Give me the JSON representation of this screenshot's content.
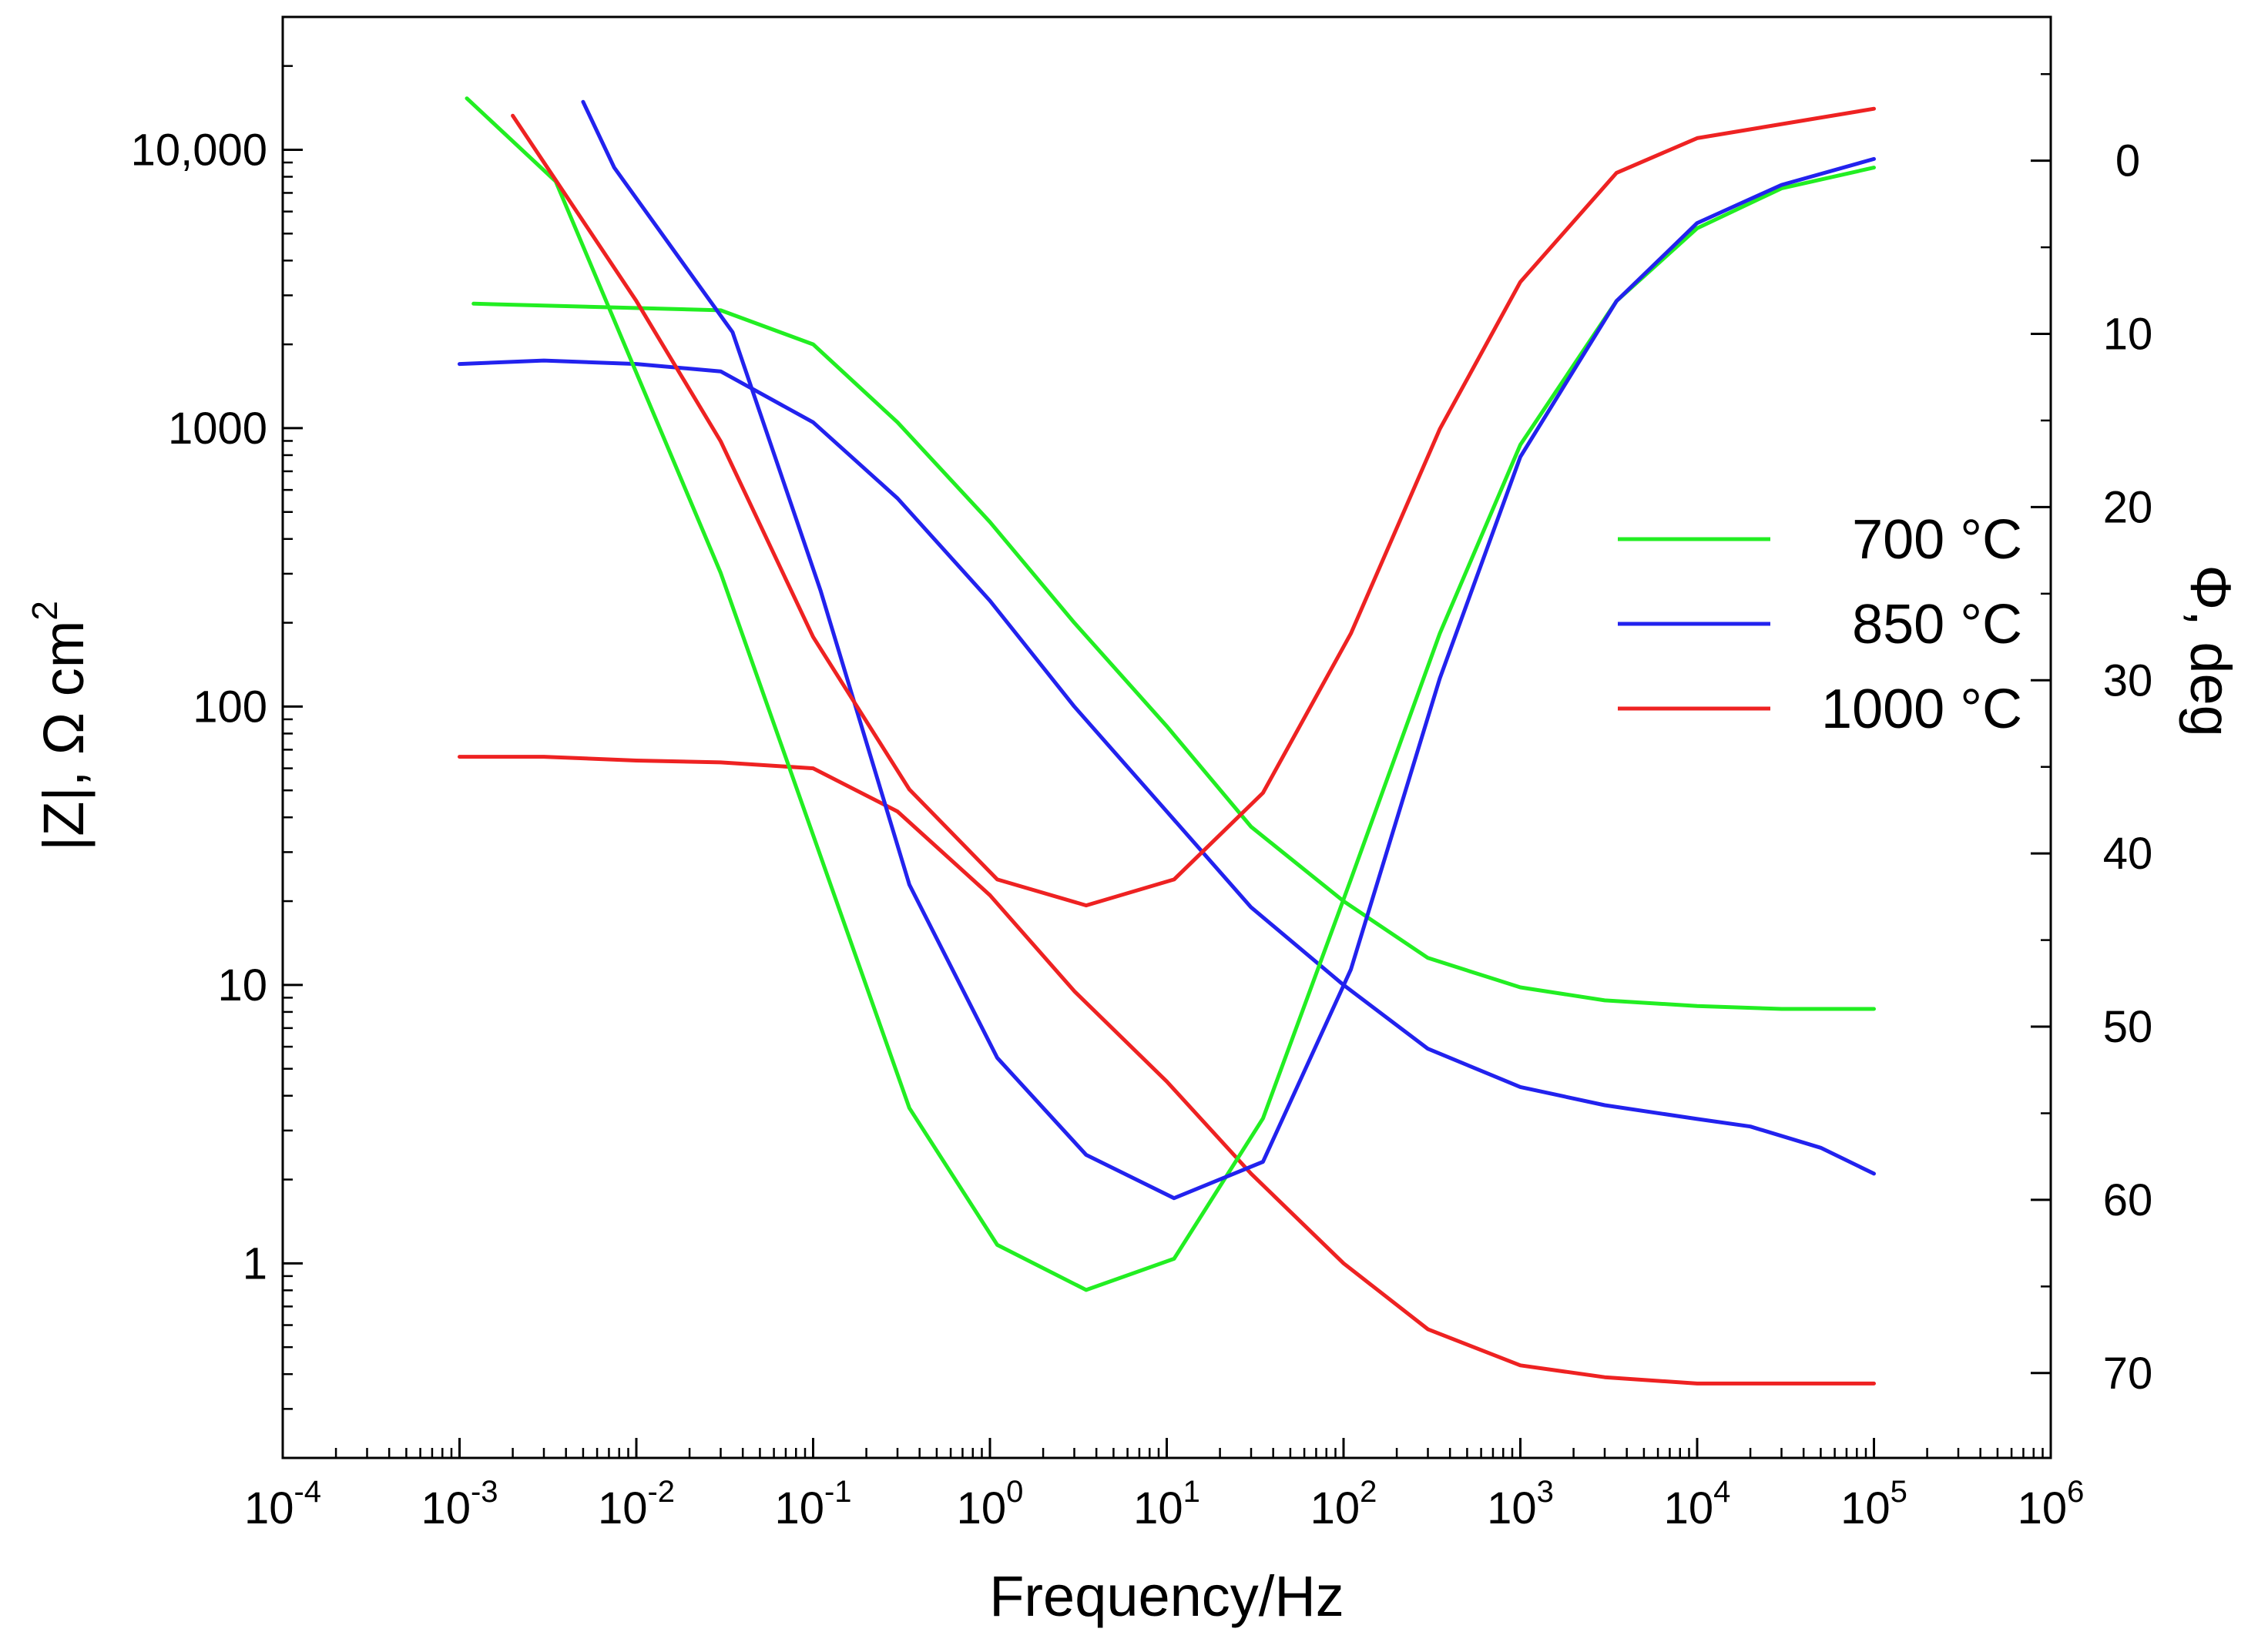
{
  "chart_data": {
    "type": "line",
    "title": "",
    "xlabel": "Frequency/Hz",
    "ylabel_left": "|Z|,  Ω cm²",
    "ylabel_left_parts": {
      "main": "|Z|,  Ω cm",
      "sup": "2"
    },
    "ylabel_right": "Φ, deg",
    "x_scale": "log",
    "xlim": [
      0.0001,
      1000000
    ],
    "x_ticks": [
      {
        "value": 0.0001,
        "base": "10",
        "exp": "-4"
      },
      {
        "value": 0.001,
        "base": "10",
        "exp": "-3"
      },
      {
        "value": 0.01,
        "base": "10",
        "exp": "-2"
      },
      {
        "value": 0.1,
        "base": "10",
        "exp": "-1"
      },
      {
        "value": 1,
        "base": "10",
        "exp": "0"
      },
      {
        "value": 10,
        "base": "10",
        "exp": "1"
      },
      {
        "value": 100,
        "base": "10",
        "exp": "2"
      },
      {
        "value": 1000,
        "base": "10",
        "exp": "3"
      },
      {
        "value": 10000,
        "base": "10",
        "exp": "4"
      },
      {
        "value": 100000,
        "base": "10",
        "exp": "5"
      },
      {
        "value": 1000000,
        "base": "10",
        "exp": "6"
      }
    ],
    "y_left_scale": "log",
    "ylim_left": [
      0.2,
      30000
    ],
    "y_left_ticks": [
      {
        "value": 1,
        "label": "1"
      },
      {
        "value": 10,
        "label": "10"
      },
      {
        "value": 100,
        "label": "100"
      },
      {
        "value": 1000,
        "label": "1000"
      },
      {
        "value": 10000,
        "label": "10,000"
      }
    ],
    "y_right_scale": "linear",
    "ylim_right": [
      -8.3,
      74.9
    ],
    "y_right_inverted": true,
    "y_right_ticks": [
      {
        "value": 0,
        "label": "0"
      },
      {
        "value": 10,
        "label": "10"
      },
      {
        "value": 20,
        "label": "20"
      },
      {
        "value": 30,
        "label": "30"
      },
      {
        "value": 40,
        "label": "40"
      },
      {
        "value": 50,
        "label": "50"
      },
      {
        "value": 60,
        "label": "60"
      },
      {
        "value": 70,
        "label": "70"
      }
    ],
    "legend_position": "center-right",
    "series": [
      {
        "name": "700 °C",
        "color": "#22ee22",
        "quantity": "impedance",
        "axis": "left",
        "x": [
          0.0012,
          0.03,
          0.1,
          0.3,
          1,
          3,
          10,
          30,
          100,
          300,
          1000,
          3000,
          10000,
          30000,
          100000
        ],
        "y": [
          2800,
          2650,
          2000,
          1050,
          460,
          200,
          85,
          37,
          20,
          12.5,
          9.8,
          8.8,
          8.4,
          8.2,
          8.2
        ]
      },
      {
        "name": "850 °C",
        "color": "#2222ee",
        "quantity": "impedance",
        "axis": "left",
        "x": [
          0.001,
          0.003,
          0.01,
          0.03,
          0.1,
          0.3,
          1,
          3,
          10,
          30,
          100,
          300,
          1000,
          3000,
          10000,
          20000,
          50000,
          100000
        ],
        "y": [
          1700,
          1750,
          1700,
          1600,
          1050,
          560,
          240,
          100,
          42,
          19,
          10,
          5.9,
          4.3,
          3.7,
          3.3,
          3.1,
          2.6,
          2.1
        ]
      },
      {
        "name": "1000 °C",
        "color": "#ee2222",
        "quantity": "impedance",
        "axis": "left",
        "x": [
          0.001,
          0.003,
          0.01,
          0.03,
          0.1,
          0.3,
          1,
          3,
          10,
          30,
          100,
          300,
          1000,
          3000,
          10000,
          100000
        ],
        "y": [
          66,
          66,
          64,
          63,
          60,
          42,
          21,
          9.5,
          4.5,
          2.1,
          1.0,
          0.58,
          0.43,
          0.39,
          0.37,
          0.37
        ]
      },
      {
        "name": "700 °C",
        "color": "#22ee22",
        "quantity": "phase",
        "axis": "right",
        "x": [
          0.0011,
          0.0035,
          0.03,
          0.35,
          1.1,
          3.5,
          11,
          35,
          110,
          350,
          1000,
          3500,
          10000,
          30000,
          100000
        ],
        "y": [
          -3.6,
          1.2,
          23.8,
          54.7,
          62.6,
          65.2,
          63.4,
          55.3,
          41.5,
          27.3,
          16.4,
          8.1,
          3.9,
          1.6,
          0.4
        ]
      },
      {
        "name": "850 °C",
        "color": "#2222ee",
        "quantity": "phase",
        "axis": "right",
        "x": [
          0.005,
          0.0075,
          0.035,
          0.11,
          0.35,
          1.1,
          3.5,
          11,
          35,
          110,
          350,
          1000,
          3500,
          10000,
          30000,
          100000
        ],
        "y": [
          -3.4,
          0.4,
          9.9,
          24.8,
          41.8,
          51.8,
          57.4,
          59.9,
          57.8,
          46.7,
          29.9,
          17.1,
          8.1,
          3.6,
          1.4,
          -0.1
        ]
      },
      {
        "name": "1000 °C",
        "color": "#ee2222",
        "quantity": "phase",
        "axis": "right",
        "x": [
          0.002,
          0.01,
          0.03,
          0.1,
          0.35,
          1.1,
          3.5,
          11,
          35,
          110,
          350,
          1000,
          3500,
          10000,
          100000
        ],
        "y": [
          -2.6,
          8.1,
          16.2,
          27.5,
          36.3,
          41.5,
          43.0,
          41.5,
          36.5,
          27.3,
          15.5,
          7.0,
          0.7,
          -1.3,
          -3.0
        ]
      }
    ],
    "legend": [
      {
        "label": "700 °C",
        "color": "#22ee22"
      },
      {
        "label": "850 °C",
        "color": "#2222ee"
      },
      {
        "label": "1000 °C",
        "color": "#ee2222"
      }
    ]
  }
}
